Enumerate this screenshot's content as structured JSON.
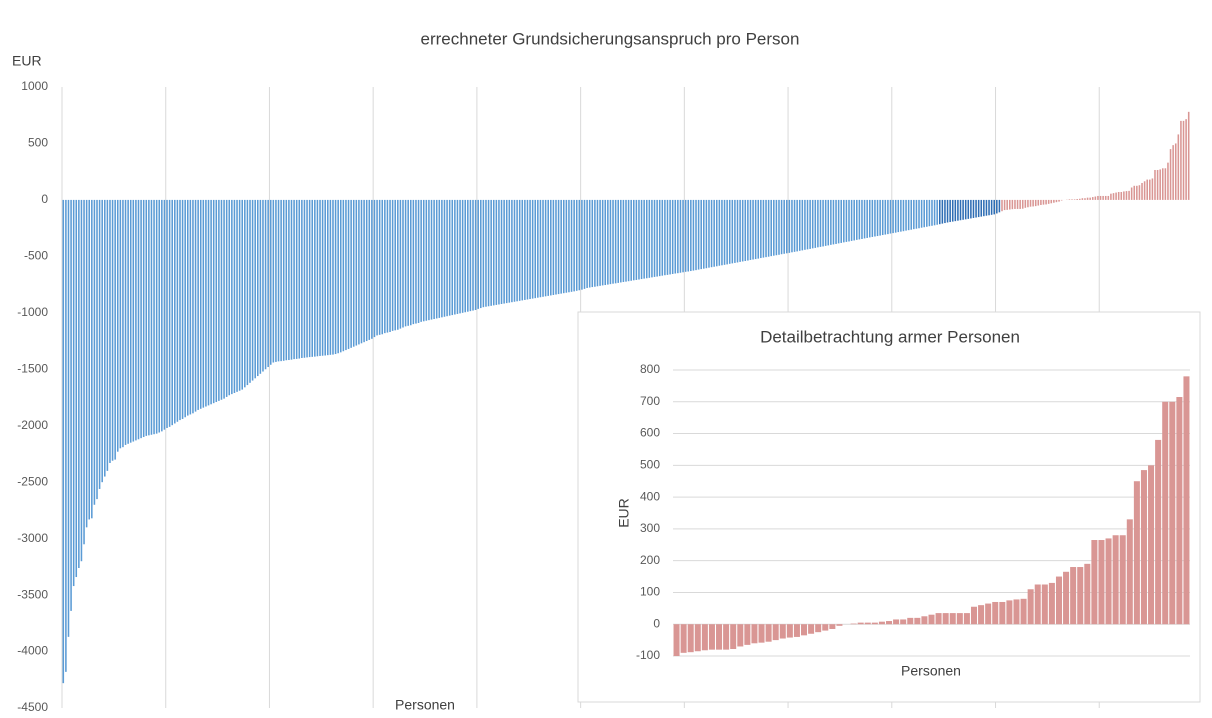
{
  "chart_data": [
    {
      "type": "bar",
      "title": "errechneter Grundsicherungsanspruch pro Person",
      "y_label": "EUR",
      "x_label": "Personen",
      "ylim": [
        -4500,
        1000
      ],
      "yticks": [
        -4500,
        -4000,
        -3500,
        -3000,
        -2500,
        -2000,
        -1500,
        -1000,
        -500,
        0,
        500,
        1000
      ],
      "xgrid": true,
      "series": [
        {
          "color": "#5b9bd5",
          "values": [
            -4280,
            -4180,
            -3870,
            -3640,
            -3420,
            -3340,
            -3260,
            -3200,
            -3050,
            -2900,
            -2830,
            -2820,
            -2700,
            -2650,
            -2560,
            -2500,
            -2450,
            -2400,
            -2330,
            -2310,
            -2300,
            -2230,
            -2200,
            -2190,
            -2170,
            -2160,
            -2150,
            -2140,
            -2130,
            -2120,
            -2110,
            -2100,
            -2090,
            -2085,
            -2080,
            -2075,
            -2070,
            -2060,
            -2050,
            -2035,
            -2020,
            -2010,
            -1995,
            -1980,
            -1965,
            -1950,
            -1940,
            -1925,
            -1910,
            -1900,
            -1890,
            -1875,
            -1860,
            -1850,
            -1840,
            -1830,
            -1820,
            -1810,
            -1800,
            -1790,
            -1780,
            -1770,
            -1760,
            -1745,
            -1730,
            -1720,
            -1710,
            -1700,
            -1690,
            -1680,
            -1660,
            -1640,
            -1620,
            -1600,
            -1580,
            -1560,
            -1540,
            -1520,
            -1500,
            -1480,
            -1460,
            -1440,
            -1435,
            -1430,
            -1428,
            -1425,
            -1420,
            -1418,
            -1415,
            -1410,
            -1408,
            -1405,
            -1400,
            -1398,
            -1395,
            -1392,
            -1390,
            -1388,
            -1385,
            -1382,
            -1380,
            -1378,
            -1375,
            -1372,
            -1370,
            -1365,
            -1358,
            -1350,
            -1340,
            -1330,
            -1320,
            -1310,
            -1300,
            -1290,
            -1280,
            -1270,
            -1260,
            -1250,
            -1240,
            -1230,
            -1215,
            -1200,
            -1195,
            -1190,
            -1180,
            -1175,
            -1170,
            -1160,
            -1155,
            -1150,
            -1140,
            -1130,
            -1120,
            -1115,
            -1110,
            -1100,
            -1095,
            -1090,
            -1080,
            -1075,
            -1070,
            -1065,
            -1060,
            -1055,
            -1050,
            -1045,
            -1040,
            -1035,
            -1030,
            -1025,
            -1020,
            -1015,
            -1010,
            -1005,
            -1000,
            -995,
            -990,
            -985,
            -980,
            -975,
            -965,
            -958,
            -950,
            -946,
            -942,
            -938,
            -934,
            -930,
            -926,
            -922,
            -918,
            -914,
            -910,
            -906,
            -902,
            -898,
            -894,
            -890,
            -886,
            -882,
            -878,
            -874,
            -870,
            -866,
            -862,
            -858,
            -854,
            -850,
            -846,
            -842,
            -838,
            -834,
            -830,
            -826,
            -822,
            -818,
            -814,
            -810,
            -805,
            -800,
            -795,
            -788,
            -780,
            -776,
            -772,
            -769,
            -765,
            -761,
            -757,
            -754,
            -750,
            -746,
            -742,
            -739,
            -735,
            -731,
            -727,
            -724,
            -720,
            -716,
            -712,
            -709,
            -705,
            -701,
            -697,
            -694,
            -690,
            -686,
            -682,
            -679,
            -675,
            -671,
            -667,
            -664,
            -660,
            -656,
            -652,
            -649,
            -645,
            -641,
            -637,
            -634,
            -630,
            -626,
            -622,
            -617,
            -613,
            -609,
            -605,
            -600,
            -596,
            -592,
            -588,
            -583,
            -579,
            -575,
            -571,
            -566,
            -562,
            -558,
            -554,
            -549,
            -545,
            -541,
            -537,
            -532,
            -528,
            -524,
            -520,
            -515,
            -511,
            -507,
            -503,
            -498,
            -494,
            -490,
            -486,
            -481,
            -477,
            -473,
            -469,
            -464,
            -460,
            -456,
            -451,
            -447,
            -442,
            -438,
            -434,
            -429,
            -425,
            -420,
            -416,
            -412,
            -407,
            -403,
            -398,
            -394,
            -390,
            -385,
            -381,
            -376,
            -372,
            -368,
            -363,
            -359,
            -354,
            -350,
            -346,
            -341,
            -337,
            -332,
            -328,
            -324,
            -320,
            -316,
            -311,
            -307,
            -303,
            -298,
            -294,
            -290,
            -285,
            -281,
            -277,
            -272,
            -268,
            -264,
            -259,
            -255,
            -251,
            -246,
            -242,
            -238,
            -233,
            -229,
            -225,
            -220
          ]
        },
        {
          "color": "#2e6db4",
          "values": [
            -215,
            -210,
            -205,
            -200,
            -196,
            -192,
            -188,
            -184,
            -180,
            -176,
            -172,
            -168,
            -164,
            -160,
            -156,
            -152,
            -148,
            -144,
            -140,
            -136,
            -132,
            -128,
            -120,
            -110
          ]
        },
        {
          "color": "#d99694",
          "values": [
            -100,
            -90,
            -88,
            -85,
            -82,
            -80,
            -80,
            -80,
            -78,
            -70,
            -65,
            -60,
            -58,
            -55,
            -50,
            -45,
            -42,
            -40,
            -35,
            -30,
            -25,
            -20,
            -15,
            -5,
            0,
            2,
            5,
            5,
            5,
            8,
            10,
            15,
            15,
            20,
            20,
            25,
            30,
            35,
            35,
            35,
            35,
            35,
            55,
            60,
            65,
            70,
            70,
            75,
            78,
            80,
            110,
            125,
            125,
            130,
            150,
            165,
            180,
            180,
            190,
            265,
            265,
            270,
            280,
            280,
            330,
            450,
            485,
            500,
            580,
            700,
            700,
            715,
            780
          ]
        }
      ]
    },
    {
      "type": "bar",
      "title": "Detailbetrachtung armer Personen",
      "y_label": "EUR",
      "x_label": "Personen",
      "ylim": [
        -100,
        800
      ],
      "yticks": [
        -100,
        0,
        100,
        200,
        300,
        400,
        500,
        600,
        700,
        800
      ],
      "grid": true,
      "series": [
        {
          "color": "#d99694",
          "values": [
            -100,
            -90,
            -88,
            -85,
            -82,
            -80,
            -80,
            -80,
            -78,
            -70,
            -65,
            -60,
            -58,
            -55,
            -50,
            -45,
            -42,
            -40,
            -35,
            -30,
            -25,
            -20,
            -15,
            -5,
            0,
            2,
            5,
            5,
            5,
            8,
            10,
            15,
            15,
            20,
            20,
            25,
            30,
            35,
            35,
            35,
            35,
            35,
            55,
            60,
            65,
            70,
            70,
            75,
            78,
            80,
            110,
            125,
            125,
            130,
            150,
            165,
            180,
            180,
            190,
            265,
            265,
            270,
            280,
            280,
            330,
            450,
            485,
            500,
            580,
            700,
            700,
            715,
            780
          ]
        }
      ]
    }
  ]
}
